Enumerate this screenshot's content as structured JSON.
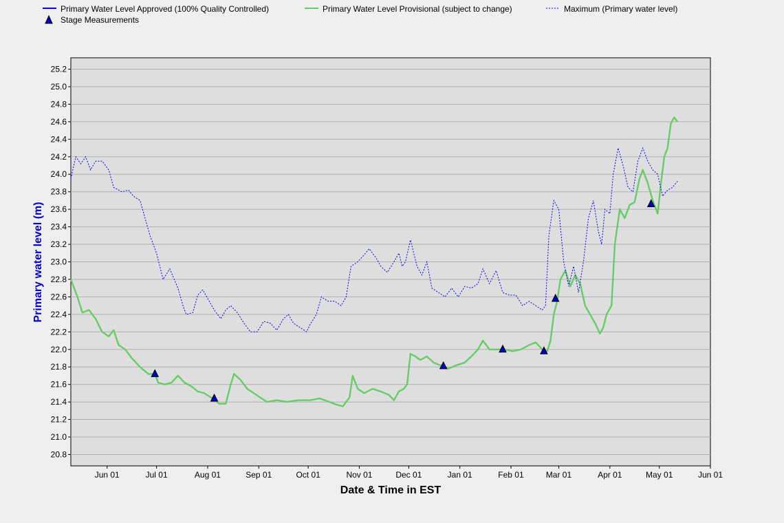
{
  "chart_data": {
    "type": "line",
    "title": "",
    "xlabel": "Date & Time in EST",
    "ylabel": "Primary water level (m)",
    "ylim": [
      20.67,
      25.33
    ],
    "grid": true,
    "legend_position": "top",
    "colors": {
      "approved": "#0000ff",
      "provisional": "#66cc66",
      "maximum": "#0000ee",
      "measurement_fill": "#0000cc",
      "plot_bg": "#dedede",
      "page_bg": "#efefef",
      "ylabel_color": "#0000cc"
    },
    "legend": [
      {
        "key": "approved",
        "label": "Primary Water Level Approved (100% Quality Controlled)",
        "style": "solid"
      },
      {
        "key": "provisional",
        "label": "Primary Water Level Provisional (subject to change)",
        "style": "solid"
      },
      {
        "key": "maximum",
        "label": "Maximum (Primary water level)",
        "style": "dotted"
      },
      {
        "key": "measurements",
        "label": "Stage Measurements",
        "style": "triangle"
      }
    ],
    "x_ticks": [
      {
        "label": "Jun 01",
        "date": "2023-06-01"
      },
      {
        "label": "Jul 01",
        "date": "2023-07-01"
      },
      {
        "label": "Aug 01",
        "date": "2023-08-01"
      },
      {
        "label": "Sep 01",
        "date": "2023-09-01"
      },
      {
        "label": "Oct 01",
        "date": "2023-10-01"
      },
      {
        "label": "Nov 01",
        "date": "2023-11-01"
      },
      {
        "label": "Dec 01",
        "date": "2023-12-01"
      },
      {
        "label": "Jan 01",
        "date": "2024-01-01"
      },
      {
        "label": "Feb 01",
        "date": "2024-02-01"
      },
      {
        "label": "Mar 01",
        "date": "2024-03-01"
      },
      {
        "label": "Apr 01",
        "date": "2024-04-01"
      },
      {
        "label": "May 01",
        "date": "2024-05-01"
      },
      {
        "label": "Jun 01",
        "date": "2024-06-01"
      }
    ],
    "x_range": [
      "2023-05-10",
      "2024-06-01"
    ],
    "y_ticks": [
      "20.8",
      "21.0",
      "21.2",
      "21.4",
      "21.6",
      "21.8",
      "22.0",
      "22.2",
      "22.4",
      "22.6",
      "22.8",
      "23.0",
      "23.2",
      "23.4",
      "23.6",
      "23.8",
      "24.0",
      "24.2",
      "24.4",
      "24.6",
      "24.8",
      "25.0",
      "25.2"
    ],
    "series": [
      {
        "name": "Primary Water Level Provisional (subject to change)",
        "key": "provisional",
        "points": [
          [
            "2023-05-10",
            22.8
          ],
          [
            "2023-05-14",
            22.6
          ],
          [
            "2023-05-17",
            22.42
          ],
          [
            "2023-05-21",
            22.45
          ],
          [
            "2023-05-25",
            22.35
          ],
          [
            "2023-05-29",
            22.2
          ],
          [
            "2023-06-02",
            22.15
          ],
          [
            "2023-06-05",
            22.22
          ],
          [
            "2023-06-08",
            22.05
          ],
          [
            "2023-06-12",
            22.0
          ],
          [
            "2023-06-16",
            21.9
          ],
          [
            "2023-06-21",
            21.8
          ],
          [
            "2023-06-26",
            21.72
          ],
          [
            "2023-06-30",
            21.72
          ],
          [
            "2023-07-02",
            21.62
          ],
          [
            "2023-07-06",
            21.6
          ],
          [
            "2023-07-10",
            21.62
          ],
          [
            "2023-07-14",
            21.7
          ],
          [
            "2023-07-18",
            21.62
          ],
          [
            "2023-07-22",
            21.58
          ],
          [
            "2023-07-26",
            21.52
          ],
          [
            "2023-07-30",
            21.5
          ],
          [
            "2023-08-04",
            21.44
          ],
          [
            "2023-08-08",
            21.38
          ],
          [
            "2023-08-12",
            21.38
          ],
          [
            "2023-08-15",
            21.6
          ],
          [
            "2023-08-17",
            21.72
          ],
          [
            "2023-08-21",
            21.65
          ],
          [
            "2023-08-25",
            21.55
          ],
          [
            "2023-08-29",
            21.5
          ],
          [
            "2023-09-02",
            21.45
          ],
          [
            "2023-09-06",
            21.4
          ],
          [
            "2023-09-12",
            21.42
          ],
          [
            "2023-09-18",
            21.4
          ],
          [
            "2023-09-25",
            21.42
          ],
          [
            "2023-10-02",
            21.42
          ],
          [
            "2023-10-08",
            21.44
          ],
          [
            "2023-10-14",
            21.4
          ],
          [
            "2023-10-18",
            21.37
          ],
          [
            "2023-10-22",
            21.35
          ],
          [
            "2023-10-26",
            21.45
          ],
          [
            "2023-10-28",
            21.7
          ],
          [
            "2023-10-31",
            21.55
          ],
          [
            "2023-11-04",
            21.5
          ],
          [
            "2023-11-09",
            21.55
          ],
          [
            "2023-11-14",
            21.52
          ],
          [
            "2023-11-19",
            21.48
          ],
          [
            "2023-11-22",
            21.42
          ],
          [
            "2023-11-25",
            21.52
          ],
          [
            "2023-11-28",
            21.55
          ],
          [
            "2023-11-30",
            21.6
          ],
          [
            "2023-12-02",
            21.95
          ],
          [
            "2023-12-05",
            21.92
          ],
          [
            "2023-12-08",
            21.88
          ],
          [
            "2023-12-12",
            21.92
          ],
          [
            "2023-12-16",
            21.85
          ],
          [
            "2023-12-20",
            21.82
          ],
          [
            "2023-12-25",
            21.78
          ],
          [
            "2023-12-30",
            21.82
          ],
          [
            "2024-01-04",
            21.85
          ],
          [
            "2024-01-08",
            21.92
          ],
          [
            "2024-01-12",
            22.0
          ],
          [
            "2024-01-15",
            22.1
          ],
          [
            "2024-01-19",
            22.0
          ],
          [
            "2024-01-24",
            22.0
          ],
          [
            "2024-01-28",
            22.0
          ],
          [
            "2024-02-02",
            21.98
          ],
          [
            "2024-02-07",
            22.0
          ],
          [
            "2024-02-12",
            22.05
          ],
          [
            "2024-02-16",
            22.08
          ],
          [
            "2024-02-20",
            22.0
          ],
          [
            "2024-02-23",
            21.98
          ],
          [
            "2024-02-25",
            22.1
          ],
          [
            "2024-02-27",
            22.4
          ],
          [
            "2024-02-29",
            22.55
          ],
          [
            "2024-03-02",
            22.8
          ],
          [
            "2024-03-05",
            22.9
          ],
          [
            "2024-03-08",
            22.72
          ],
          [
            "2024-03-11",
            22.85
          ],
          [
            "2024-03-14",
            22.75
          ],
          [
            "2024-03-17",
            22.5
          ],
          [
            "2024-03-20",
            22.4
          ],
          [
            "2024-03-23",
            22.3
          ],
          [
            "2024-03-26",
            22.18
          ],
          [
            "2024-03-28",
            22.25
          ],
          [
            "2024-03-30",
            22.4
          ],
          [
            "2024-04-02",
            22.5
          ],
          [
            "2024-04-04",
            23.2
          ],
          [
            "2024-04-07",
            23.6
          ],
          [
            "2024-04-10",
            23.5
          ],
          [
            "2024-04-13",
            23.65
          ],
          [
            "2024-04-16",
            23.68
          ],
          [
            "2024-04-19",
            23.95
          ],
          [
            "2024-04-21",
            24.05
          ],
          [
            "2024-04-24",
            23.9
          ],
          [
            "2024-04-27",
            23.7
          ],
          [
            "2024-04-30",
            23.55
          ],
          [
            "2024-05-02",
            23.9
          ],
          [
            "2024-05-04",
            24.2
          ],
          [
            "2024-05-06",
            24.3
          ],
          [
            "2024-05-08",
            24.58
          ],
          [
            "2024-05-10",
            24.65
          ],
          [
            "2024-05-12",
            24.6
          ]
        ]
      },
      {
        "name": "Maximum (Primary water level)",
        "key": "maximum",
        "points": [
          [
            "2023-05-10",
            23.95
          ],
          [
            "2023-05-13",
            24.2
          ],
          [
            "2023-05-16",
            24.12
          ],
          [
            "2023-05-19",
            24.2
          ],
          [
            "2023-05-22",
            24.05
          ],
          [
            "2023-05-25",
            24.15
          ],
          [
            "2023-05-29",
            24.15
          ],
          [
            "2023-06-02",
            24.05
          ],
          [
            "2023-06-05",
            23.85
          ],
          [
            "2023-06-10",
            23.8
          ],
          [
            "2023-06-14",
            23.82
          ],
          [
            "2023-06-17",
            23.75
          ],
          [
            "2023-06-21",
            23.7
          ],
          [
            "2023-06-24",
            23.5
          ],
          [
            "2023-06-27",
            23.3
          ],
          [
            "2023-07-01",
            23.1
          ],
          [
            "2023-07-05",
            22.8
          ],
          [
            "2023-07-09",
            22.92
          ],
          [
            "2023-07-14",
            22.7
          ],
          [
            "2023-07-17",
            22.5
          ],
          [
            "2023-07-19",
            22.4
          ],
          [
            "2023-07-23",
            22.42
          ],
          [
            "2023-07-26",
            22.62
          ],
          [
            "2023-07-29",
            22.68
          ],
          [
            "2023-08-02",
            22.55
          ],
          [
            "2023-08-05",
            22.45
          ],
          [
            "2023-08-09",
            22.35
          ],
          [
            "2023-08-12",
            22.45
          ],
          [
            "2023-08-15",
            22.5
          ],
          [
            "2023-08-19",
            22.42
          ],
          [
            "2023-08-23",
            22.3
          ],
          [
            "2023-08-27",
            22.2
          ],
          [
            "2023-08-31",
            22.2
          ],
          [
            "2023-09-04",
            22.32
          ],
          [
            "2023-09-08",
            22.3
          ],
          [
            "2023-09-12",
            22.22
          ],
          [
            "2023-09-16",
            22.35
          ],
          [
            "2023-09-19",
            22.4
          ],
          [
            "2023-09-22",
            22.3
          ],
          [
            "2023-09-26",
            22.25
          ],
          [
            "2023-09-30",
            22.2
          ],
          [
            "2023-10-02",
            22.28
          ],
          [
            "2023-10-06",
            22.4
          ],
          [
            "2023-10-09",
            22.6
          ],
          [
            "2023-10-13",
            22.55
          ],
          [
            "2023-10-17",
            22.55
          ],
          [
            "2023-10-21",
            22.5
          ],
          [
            "2023-10-24",
            22.6
          ],
          [
            "2023-10-27",
            22.95
          ],
          [
            "2023-10-31",
            23.0
          ],
          [
            "2023-11-04",
            23.08
          ],
          [
            "2023-11-07",
            23.15
          ],
          [
            "2023-11-11",
            23.05
          ],
          [
            "2023-11-14",
            22.95
          ],
          [
            "2023-11-18",
            22.88
          ],
          [
            "2023-11-22",
            23.0
          ],
          [
            "2023-11-25",
            23.1
          ],
          [
            "2023-11-27",
            22.95
          ],
          [
            "2023-11-29",
            23.0
          ],
          [
            "2023-12-02",
            23.25
          ],
          [
            "2023-12-06",
            22.95
          ],
          [
            "2023-12-09",
            22.85
          ],
          [
            "2023-12-12",
            23.0
          ],
          [
            "2023-12-15",
            22.7
          ],
          [
            "2023-12-19",
            22.65
          ],
          [
            "2023-12-23",
            22.6
          ],
          [
            "2023-12-27",
            22.7
          ],
          [
            "2023-12-31",
            22.6
          ],
          [
            "2024-01-04",
            22.72
          ],
          [
            "2024-01-08",
            22.7
          ],
          [
            "2024-01-12",
            22.75
          ],
          [
            "2024-01-15",
            22.92
          ],
          [
            "2024-01-19",
            22.75
          ],
          [
            "2024-01-23",
            22.9
          ],
          [
            "2024-01-27",
            22.65
          ],
          [
            "2024-01-31",
            22.62
          ],
          [
            "2024-02-04",
            22.62
          ],
          [
            "2024-02-08",
            22.5
          ],
          [
            "2024-02-12",
            22.55
          ],
          [
            "2024-02-16",
            22.5
          ],
          [
            "2024-02-20",
            22.45
          ],
          [
            "2024-02-22",
            22.5
          ],
          [
            "2024-02-24",
            23.3
          ],
          [
            "2024-02-27",
            23.7
          ],
          [
            "2024-03-01",
            23.6
          ],
          [
            "2024-03-04",
            23.0
          ],
          [
            "2024-03-07",
            22.72
          ],
          [
            "2024-03-10",
            22.95
          ],
          [
            "2024-03-13",
            22.65
          ],
          [
            "2024-03-16",
            23.0
          ],
          [
            "2024-03-19",
            23.5
          ],
          [
            "2024-03-22",
            23.7
          ],
          [
            "2024-03-25",
            23.35
          ],
          [
            "2024-03-27",
            23.2
          ],
          [
            "2024-03-29",
            23.6
          ],
          [
            "2024-04-01",
            23.55
          ],
          [
            "2024-04-03",
            24.0
          ],
          [
            "2024-04-06",
            24.3
          ],
          [
            "2024-04-09",
            24.1
          ],
          [
            "2024-04-12",
            23.85
          ],
          [
            "2024-04-15",
            23.8
          ],
          [
            "2024-04-18",
            24.15
          ],
          [
            "2024-04-21",
            24.3
          ],
          [
            "2024-04-24",
            24.15
          ],
          [
            "2024-04-27",
            24.05
          ],
          [
            "2024-04-30",
            24.0
          ],
          [
            "2024-05-03",
            23.75
          ],
          [
            "2024-05-06",
            23.82
          ],
          [
            "2024-05-09",
            23.85
          ],
          [
            "2024-05-12",
            23.92
          ]
        ]
      }
    ],
    "measurements": [
      [
        "2023-06-30",
        21.72
      ],
      [
        "2023-08-05",
        21.44
      ],
      [
        "2023-12-22",
        21.81
      ],
      [
        "2024-01-27",
        22.0
      ],
      [
        "2024-02-21",
        21.98
      ],
      [
        "2024-02-28",
        22.58
      ],
      [
        "2024-04-26",
        23.66
      ]
    ]
  }
}
